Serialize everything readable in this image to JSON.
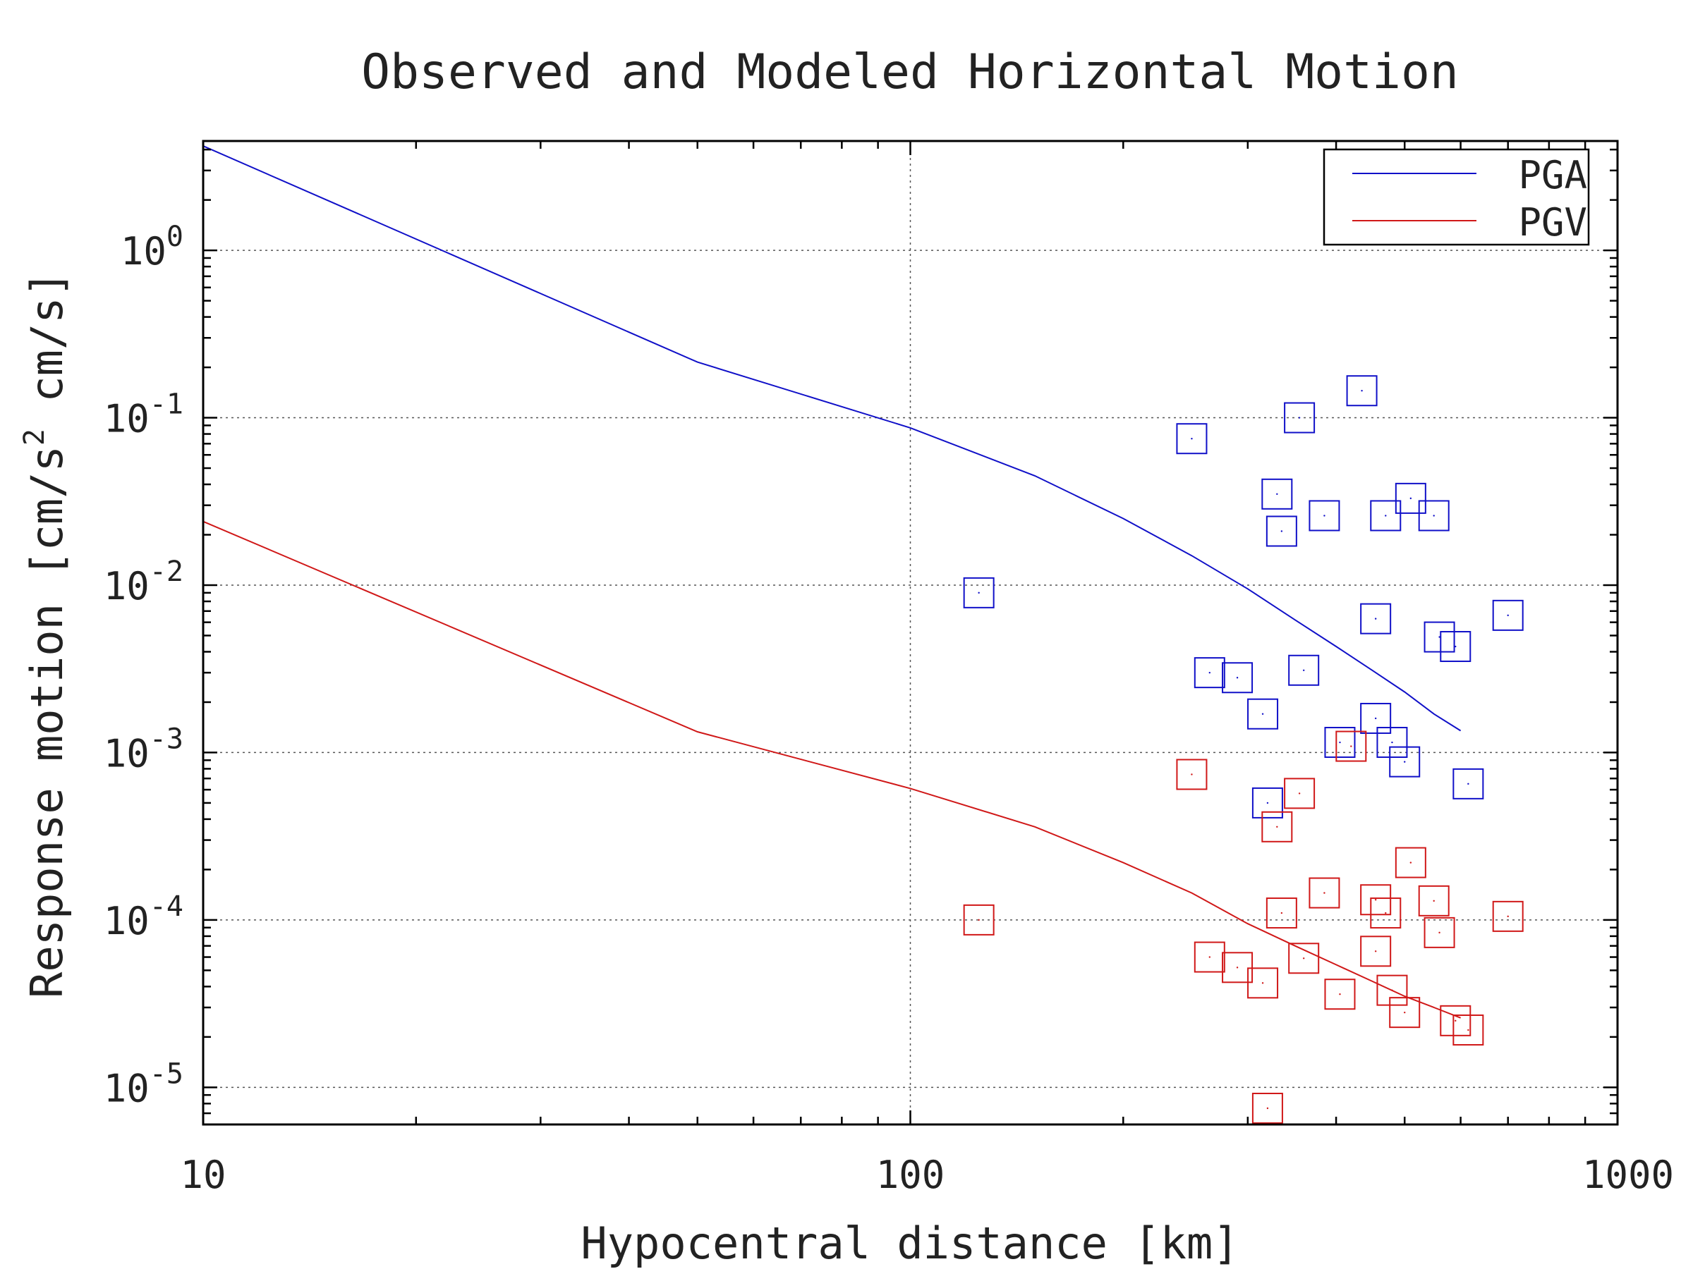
{
  "chart_data": {
    "type": "scatter",
    "title": "Observed and Modeled Horizontal Motion",
    "xlabel": "Hypocentral distance [km]",
    "ylabel_main": "Response motion [cm/s",
    "ylabel_sup": "2",
    "ylabel_tail": " cm/s]",
    "xscale": "log",
    "yscale": "log",
    "xlim": [
      10,
      1000
    ],
    "ylim": [
      6e-06,
      4.5
    ],
    "grid": true,
    "legend_position": "top-right",
    "x_ticks": [
      {
        "value": 10,
        "label": "10"
      },
      {
        "value": 100,
        "label": "100"
      },
      {
        "value": 1000,
        "label": "1000"
      }
    ],
    "y_ticks": [
      {
        "value": 1,
        "base": "10",
        "exp": "0"
      },
      {
        "value": 0.1,
        "base": "10",
        "exp": "-1"
      },
      {
        "value": 0.01,
        "base": "10",
        "exp": "-2"
      },
      {
        "value": 0.001,
        "base": "10",
        "exp": "-3"
      },
      {
        "value": 0.0001,
        "base": "10",
        "exp": "-4"
      },
      {
        "value": 1e-05,
        "base": "10",
        "exp": "-5"
      }
    ],
    "series": [
      {
        "name": "PGA",
        "color": "#1010c8",
        "line": [
          [
            10,
            4.2
          ],
          [
            50,
            0.215
          ],
          [
            100,
            0.087
          ],
          [
            150,
            0.045
          ],
          [
            200,
            0.025
          ],
          [
            250,
            0.015
          ],
          [
            300,
            0.0095
          ],
          [
            350,
            0.0062
          ],
          [
            400,
            0.0043
          ],
          [
            450,
            0.0031
          ],
          [
            500,
            0.0023
          ],
          [
            550,
            0.0017
          ],
          [
            600,
            0.00135
          ]
        ],
        "points": [
          [
            125,
            0.009
          ],
          [
            250,
            0.075
          ],
          [
            265,
            0.003
          ],
          [
            290,
            0.0028
          ],
          [
            315,
            0.0017
          ],
          [
            320,
            0.0005
          ],
          [
            330,
            0.035
          ],
          [
            335,
            0.021
          ],
          [
            355,
            0.1
          ],
          [
            360,
            0.0031
          ],
          [
            385,
            0.026
          ],
          [
            405,
            0.00115
          ],
          [
            435,
            0.145
          ],
          [
            455,
            0.0063
          ],
          [
            455,
            0.0016
          ],
          [
            470,
            0.026
          ],
          [
            480,
            0.00115
          ],
          [
            500,
            0.00088
          ],
          [
            510,
            0.033
          ],
          [
            550,
            0.026
          ],
          [
            560,
            0.0049
          ],
          [
            590,
            0.0043
          ],
          [
            615,
            0.00065
          ],
          [
            700,
            0.0066
          ]
        ]
      },
      {
        "name": "PGV",
        "color": "#d01818",
        "line": [
          [
            10,
            0.024
          ],
          [
            50,
            0.00133
          ],
          [
            100,
            0.00061
          ],
          [
            150,
            0.00036
          ],
          [
            200,
            0.00022
          ],
          [
            250,
            0.000145
          ],
          [
            300,
            9.5e-05
          ],
          [
            350,
            7e-05
          ],
          [
            400,
            5.4e-05
          ],
          [
            450,
            4.3e-05
          ],
          [
            500,
            3.5e-05
          ],
          [
            550,
            3e-05
          ],
          [
            600,
            2.6e-05
          ]
        ],
        "points": [
          [
            125,
            0.0001
          ],
          [
            250,
            0.00074
          ],
          [
            265,
            6e-05
          ],
          [
            290,
            5.2e-05
          ],
          [
            315,
            4.2e-05
          ],
          [
            320,
            7.5e-06
          ],
          [
            330,
            0.00036
          ],
          [
            335,
            0.00011
          ],
          [
            355,
            0.00057
          ],
          [
            360,
            5.9e-05
          ],
          [
            385,
            0.000145
          ],
          [
            405,
            3.6e-05
          ],
          [
            420,
            0.00109
          ],
          [
            455,
            6.5e-05
          ],
          [
            455,
            0.000132
          ],
          [
            470,
            0.00011
          ],
          [
            480,
            3.8e-05
          ],
          [
            500,
            2.8e-05
          ],
          [
            510,
            0.00022
          ],
          [
            550,
            0.00013
          ],
          [
            560,
            8.4e-05
          ],
          [
            590,
            2.5e-05
          ],
          [
            615,
            2.2e-05
          ],
          [
            700,
            0.000105
          ]
        ]
      }
    ]
  }
}
